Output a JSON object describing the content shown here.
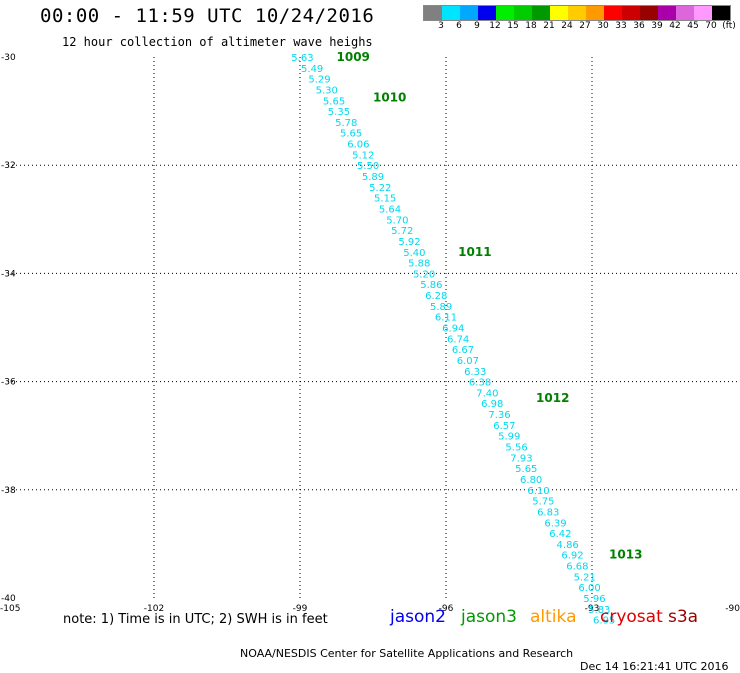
{
  "title": "00:00 - 11:59 UTC 10/24/2016",
  "subtitle": "12 hour collection of altimeter wave heighs",
  "colorbar": {
    "colors": [
      "#808080",
      "#00e5ff",
      "#00a8ff",
      "#0000ee",
      "#00ee00",
      "#00cc00",
      "#009900",
      "#ffff00",
      "#ffcc00",
      "#ff9900",
      "#ff0000",
      "#cc0000",
      "#990000",
      "#aa00aa",
      "#dd66dd",
      "#ff99ff",
      "#000000"
    ],
    "labels": [
      "3",
      "6",
      "9",
      "12",
      "15",
      "18",
      "21",
      "24",
      "27",
      "30",
      "33",
      "36",
      "39",
      "42",
      "45",
      "70",
      "(ft)"
    ]
  },
  "axes": {
    "lon_range": [
      -105,
      -90
    ],
    "lat_range": [
      -40,
      -30
    ],
    "x_ticks": [
      {
        "value": -105,
        "label": "-105"
      },
      {
        "value": -102,
        "label": "-102"
      },
      {
        "value": -99,
        "label": "-99"
      },
      {
        "value": -96,
        "label": "-96"
      },
      {
        "value": -93,
        "label": "-93"
      },
      {
        "value": -90,
        "label": "-90"
      }
    ],
    "y_ticks": [
      {
        "value": -30,
        "label": "-30"
      },
      {
        "value": -32,
        "label": "-32"
      },
      {
        "value": -34,
        "label": "-34"
      },
      {
        "value": -36,
        "label": "-36"
      },
      {
        "value": -38,
        "label": "-38"
      },
      {
        "value": -40,
        "label": "-40"
      }
    ]
  },
  "chart_data": {
    "type": "scatter",
    "observations_color": "#00d8ee",
    "observations": [
      {
        "lon": -98.95,
        "lat": -30.0,
        "swh": "5.63"
      },
      {
        "lon": -98.75,
        "lat": -30.2,
        "swh": "5.49"
      },
      {
        "lon": -98.6,
        "lat": -30.4,
        "swh": "5.29"
      },
      {
        "lon": -98.45,
        "lat": -30.6,
        "swh": "5.30"
      },
      {
        "lon": -98.3,
        "lat": -30.8,
        "swh": "5.65"
      },
      {
        "lon": -98.2,
        "lat": -31.0,
        "swh": "5.35"
      },
      {
        "lon": -98.05,
        "lat": -31.2,
        "swh": "5.78"
      },
      {
        "lon": -97.95,
        "lat": -31.4,
        "swh": "5.65"
      },
      {
        "lon": -97.8,
        "lat": -31.6,
        "swh": "6.06"
      },
      {
        "lon": -97.7,
        "lat": -31.8,
        "swh": "5.12"
      },
      {
        "lon": -97.6,
        "lat": -32.0,
        "swh": "5.50"
      },
      {
        "lon": -97.5,
        "lat": -32.2,
        "swh": "5.89"
      },
      {
        "lon": -97.35,
        "lat": -32.4,
        "swh": "5.22"
      },
      {
        "lon": -97.25,
        "lat": -32.6,
        "swh": "5.15"
      },
      {
        "lon": -97.15,
        "lat": -32.8,
        "swh": "5.64"
      },
      {
        "lon": -97.0,
        "lat": -33.0,
        "swh": "5.70"
      },
      {
        "lon": -96.9,
        "lat": -33.2,
        "swh": "5.72"
      },
      {
        "lon": -96.75,
        "lat": -33.4,
        "swh": "5.92"
      },
      {
        "lon": -96.65,
        "lat": -33.6,
        "swh": "5.40"
      },
      {
        "lon": -96.55,
        "lat": -33.8,
        "swh": "5.88"
      },
      {
        "lon": -96.45,
        "lat": -34.0,
        "swh": "5.20"
      },
      {
        "lon": -96.3,
        "lat": -34.2,
        "swh": "5.86"
      },
      {
        "lon": -96.2,
        "lat": -34.4,
        "swh": "6.28"
      },
      {
        "lon": -96.1,
        "lat": -34.6,
        "swh": "5.89"
      },
      {
        "lon": -96.0,
        "lat": -34.8,
        "swh": "6.11"
      },
      {
        "lon": -95.85,
        "lat": -35.0,
        "swh": "6.94"
      },
      {
        "lon": -95.75,
        "lat": -35.2,
        "swh": "6.74"
      },
      {
        "lon": -95.65,
        "lat": -35.4,
        "swh": "6.67"
      },
      {
        "lon": -95.55,
        "lat": -35.6,
        "swh": "6.07"
      },
      {
        "lon": -95.4,
        "lat": -35.8,
        "swh": "6.33"
      },
      {
        "lon": -95.3,
        "lat": -36.0,
        "swh": "6.38"
      },
      {
        "lon": -95.15,
        "lat": -36.2,
        "swh": "7.40"
      },
      {
        "lon": -95.05,
        "lat": -36.4,
        "swh": "6.98"
      },
      {
        "lon": -94.9,
        "lat": -36.6,
        "swh": "7.36"
      },
      {
        "lon": -94.8,
        "lat": -36.8,
        "swh": "6.57"
      },
      {
        "lon": -94.7,
        "lat": -37.0,
        "swh": "5.99"
      },
      {
        "lon": -94.55,
        "lat": -37.2,
        "swh": "5.56"
      },
      {
        "lon": -94.45,
        "lat": -37.4,
        "swh": "7.93"
      },
      {
        "lon": -94.35,
        "lat": -37.6,
        "swh": "5.65"
      },
      {
        "lon": -94.25,
        "lat": -37.8,
        "swh": "6.80"
      },
      {
        "lon": -94.1,
        "lat": -38.0,
        "swh": "6.10"
      },
      {
        "lon": -94.0,
        "lat": -38.2,
        "swh": "5.75"
      },
      {
        "lon": -93.9,
        "lat": -38.4,
        "swh": "6.83"
      },
      {
        "lon": -93.75,
        "lat": -38.6,
        "swh": "6.39"
      },
      {
        "lon": -93.65,
        "lat": -38.8,
        "swh": "6.42"
      },
      {
        "lon": -93.5,
        "lat": -39.0,
        "swh": "4.86"
      },
      {
        "lon": -93.4,
        "lat": -39.2,
        "swh": "6.92"
      },
      {
        "lon": -93.3,
        "lat": -39.4,
        "swh": "6.68"
      },
      {
        "lon": -93.15,
        "lat": -39.6,
        "swh": "5.21"
      },
      {
        "lon": -93.05,
        "lat": -39.8,
        "swh": "6.00"
      },
      {
        "lon": -92.95,
        "lat": -40.0,
        "swh": "5.96"
      },
      {
        "lon": -92.85,
        "lat": -40.2,
        "swh": "5.83"
      },
      {
        "lon": -92.75,
        "lat": -40.4,
        "swh": "6.95"
      }
    ],
    "time_labels_color": "#008000",
    "time_labels": [
      {
        "lon": -98.25,
        "lat": -30.0,
        "text": "1009"
      },
      {
        "lon": -97.5,
        "lat": -30.75,
        "text": "1010"
      },
      {
        "lon": -95.75,
        "lat": -33.6,
        "text": "1011"
      },
      {
        "lon": -94.15,
        "lat": -36.3,
        "text": "1012"
      },
      {
        "lon": -92.65,
        "lat": -39.2,
        "text": "1013"
      }
    ]
  },
  "footer": {
    "note": "note: 1) Time is in UTC; 2) SWH is in feet",
    "satellites": [
      {
        "name": "jason2",
        "color": "#0000ee"
      },
      {
        "name": "jason3",
        "color": "#009900"
      },
      {
        "name": "altika",
        "color": "#ff9900"
      },
      {
        "name": "cryosat",
        "color": "#dd0000"
      },
      {
        "name": "s3a",
        "color": "#990000"
      }
    ],
    "credit_org": "NOAA/NESDIS Center for Satellite Applications and Research",
    "credit_time": "Dec 14 16:21:41 UTC 2016"
  }
}
